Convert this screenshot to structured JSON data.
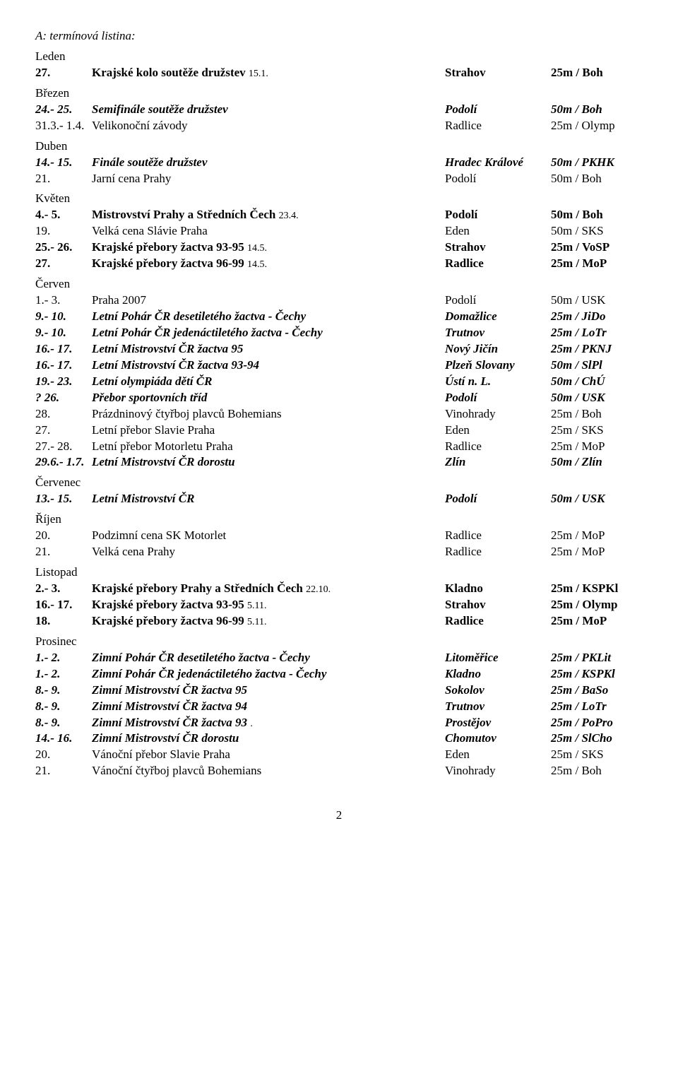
{
  "heading": "A: termínová listina:",
  "months": {
    "leden": "Leden",
    "brezen": "Březen",
    "duben": "Duben",
    "kveten": "Květen",
    "cerven": "Červen",
    "cervenec": "Červenec",
    "rijen": "Říjen",
    "listopad": "Listopad",
    "prosinec": "Prosinec"
  },
  "leden": [
    {
      "c1": "27.",
      "c2": "Krajské kolo soutěže družstev",
      "sub": "15.1.",
      "c3": "Strahov",
      "c4": "25m / Boh",
      "style": "bold"
    }
  ],
  "brezen": [
    {
      "c1": "24.- 25.",
      "c2": "Semifinále soutěže družstev",
      "c3": "Podolí",
      "c4": "50m / Boh",
      "style": "bolditalic"
    },
    {
      "c1": "31.3.- 1.4.",
      "c2": "Velikonoční závody",
      "c3": "Radlice",
      "c4": "25m / Olymp",
      "style": "plain"
    }
  ],
  "duben": [
    {
      "c1": "14.- 15.",
      "c2": "Finále soutěže družstev",
      "c3": "Hradec Králové",
      "c4": "50m / PKHK",
      "style": "bolditalic"
    },
    {
      "c1": "21.",
      "c2": "Jarní cena Prahy",
      "c3": "Podolí",
      "c4": "50m / Boh",
      "style": "plain"
    }
  ],
  "kveten": [
    {
      "c1": "4.- 5.",
      "c2": "Mistrovství Prahy a Středních Čech",
      "sub": "23.4.",
      "c3": "Podolí",
      "c4": "50m / Boh",
      "style": "bold"
    },
    {
      "c1": "19.",
      "c2": "Velká cena Slávie Praha",
      "c3": "Eden",
      "c4": "50m / SKS",
      "style": "plain"
    },
    {
      "c1": "25.- 26.",
      "c2": "Krajské přebory žactva 93-95",
      "sub": "14.5.",
      "c3": "Strahov",
      "c4": "25m / VoSP",
      "style": "bold"
    },
    {
      "c1": "27.",
      "c2": "Krajské přebory žactva 96-99",
      "sub": "14.5.",
      "c3": "Radlice",
      "c4": "25m / MoP",
      "style": "bold"
    }
  ],
  "cerven": [
    {
      "c1": "1.- 3.",
      "c2": "Praha 2007",
      "c3": "Podolí",
      "c4": "50m / USK",
      "style": "plain"
    },
    {
      "c1": "9.- 10.",
      "c2": "Letní Pohár ČR desetiletého žactva - Čechy",
      "c3": "Domažlice",
      "c4": "25m / JiDo",
      "style": "bolditalic"
    },
    {
      "c1": "9.- 10.",
      "c2": "Letní Pohár ČR jedenáctiletého žactva - Čechy",
      "c3": "Trutnov",
      "c4": "25m / LoTr",
      "style": "bolditalic"
    },
    {
      "c1": "16.- 17.",
      "c2": "Letní Mistrovství ČR žactva 95",
      "c3": "Nový Jičín",
      "c4": "25m / PKNJ",
      "style": "bolditalic"
    },
    {
      "c1": "16.- 17.",
      "c2": "Letní Mistrovství ČR žactva 93-94",
      "c3": "Plzeň Slovany",
      "c4": "50m / SlPl",
      "style": "bolditalic"
    },
    {
      "c1": "19.- 23.",
      "c2": "Letní olympiáda dětí ČR",
      "c3": "Ústí n. L.",
      "c4": "50m / ChÚ",
      "style": "bolditalic"
    },
    {
      "c1": "? 26.",
      "c2": "Přebor sportovních tříd",
      "c3": "Podolí",
      "c4": "50m / USK",
      "style": "bolditalic"
    },
    {
      "c1": "28.",
      "c2": "Prázdninový čtyřboj plavců Bohemians",
      "c3": "Vinohrady",
      "c4": "25m / Boh",
      "style": "plain"
    },
    {
      "c1": "27.",
      "c2": "Letní přebor Slavie Praha",
      "c3": "Eden",
      "c4": "25m / SKS",
      "style": "plain"
    },
    {
      "c1": "27.- 28.",
      "c2": "Letní přebor Motorletu Praha",
      "c3": "Radlice",
      "c4": "25m / MoP",
      "style": "plain"
    },
    {
      "c1": "29.6.- 1.7.",
      "c2": "Letní Mistrovství ČR dorostu",
      "c3": "Zlín",
      "c4": "50m / Zlín",
      "style": "bolditalic"
    }
  ],
  "cervenec": [
    {
      "c1": "13.- 15.",
      "c2": "Letní Mistrovství ČR",
      "c3": "Podolí",
      "c4": "50m / USK",
      "style": "bolditalic"
    }
  ],
  "rijen": [
    {
      "c1": "20.",
      "c2": "Podzimní cena SK Motorlet",
      "c3": "Radlice",
      "c4": "25m / MoP",
      "style": "plain"
    },
    {
      "c1": "21.",
      "c2": "Velká cena Prahy",
      "c3": "Radlice",
      "c4": "25m / MoP",
      "style": "plain"
    }
  ],
  "listopad": [
    {
      "c1": "2.- 3.",
      "c2": "Krajské přebory Prahy a Středních Čech",
      "sub": "22.10.",
      "c3": "Kladno",
      "c4": "25m / KSPKl",
      "style": "bold"
    },
    {
      "c1": "16.- 17.",
      "c2": "Krajské přebory žactva 93-95",
      "sub": "5.11.",
      "c3": "Strahov",
      "c4": "25m / Olymp",
      "style": "bold"
    },
    {
      "c1": "18.",
      "c2": "Krajské přebory žactva 96-99",
      "sub": "5.11.",
      "c3": "Radlice",
      "c4": "25m / MoP",
      "style": "bold"
    }
  ],
  "prosinec": [
    {
      "c1": "1.- 2.",
      "c2": "Zimní Pohár ČR desetiletého žactva - Čechy",
      "c3": "Litoměřice",
      "c4": "25m / PKLit",
      "style": "bolditalic"
    },
    {
      "c1": "1.- 2.",
      "c2": "Zimní Pohár ČR jedenáctiletého žactva - Čechy",
      "c3": "Kladno",
      "c4": "25m / KSPKl",
      "style": "bolditalic"
    },
    {
      "c1": "8.- 9.",
      "c2": "Zimní Mistrovství ČR žactva 95",
      "c3": "Sokolov",
      "c4": "25m / BaSo",
      "style": "bolditalic"
    },
    {
      "c1": "8.- 9.",
      "c2": "Zimní Mistrovství ČR žactva 94",
      "c3": "Trutnov",
      "c4": "25m / LoTr",
      "style": "bolditalic"
    },
    {
      "c1": "8.- 9.",
      "c2": "Zimní Mistrovství ČR žactva 93",
      "sub": ".",
      "c3": "Prostějov",
      "c4": "25m / PoPro",
      "style": "bolditalic"
    },
    {
      "c1": "14.- 16.",
      "c2": "Zimní Mistrovství ČR dorostu",
      "c3": "Chomutov",
      "c4": "25m / SlCho",
      "style": "bolditalic"
    },
    {
      "c1": "20.",
      "c2": "Vánoční přebor Slavie Praha",
      "c3": "Eden",
      "c4": "25m / SKS",
      "style": "plain"
    },
    {
      "c1": "21.",
      "c2": "Vánoční čtyřboj plavců Bohemians",
      "c3": "Vinohrady",
      "c4": "25m / Boh",
      "style": "plain"
    }
  ],
  "pagenum": "2"
}
